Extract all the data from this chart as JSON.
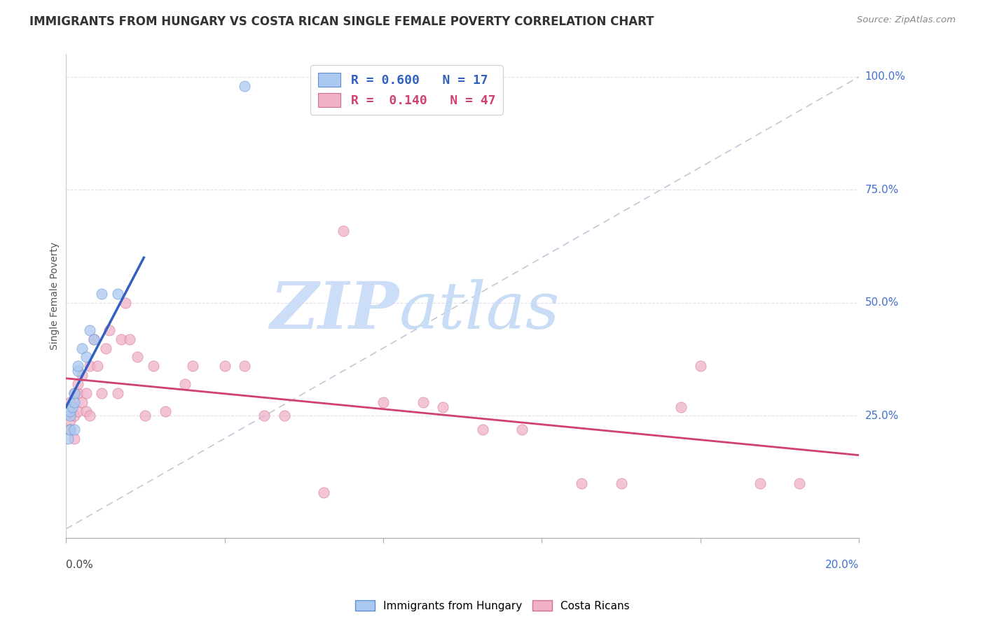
{
  "title": "IMMIGRANTS FROM HUNGARY VS COSTA RICAN SINGLE FEMALE POVERTY CORRELATION CHART",
  "source": "Source: ZipAtlas.com",
  "ylabel": "Single Female Poverty",
  "legend_blue_label": "Immigrants from Hungary",
  "legend_pink_label": "Costa Ricans",
  "blue_scatter_color": "#aac8f0",
  "pink_scatter_color": "#f0b0c8",
  "blue_line_color": "#3060c0",
  "pink_line_color": "#d04070",
  "blue_edge_color": "#6090d0",
  "pink_edge_color": "#d07090",
  "watermark_zip_color": "#ccddf8",
  "watermark_atlas_color": "#c8ddf5",
  "grid_color": "#e0e0ee",
  "diag_color": "#c0c8d8",
  "xlim": [
    0.0,
    0.2
  ],
  "ylim": [
    -0.02,
    1.05
  ],
  "hungary_x": [
    0.0005,
    0.001,
    0.001,
    0.001,
    0.0015,
    0.002,
    0.002,
    0.002,
    0.003,
    0.003,
    0.004,
    0.005,
    0.006,
    0.007,
    0.009,
    0.013,
    0.045
  ],
  "hungary_y": [
    0.2,
    0.22,
    0.25,
    0.26,
    0.27,
    0.22,
    0.28,
    0.3,
    0.35,
    0.36,
    0.4,
    0.38,
    0.44,
    0.42,
    0.52,
    0.52,
    0.98
  ],
  "costa_x": [
    0.001,
    0.001,
    0.001,
    0.002,
    0.002,
    0.002,
    0.003,
    0.003,
    0.003,
    0.004,
    0.004,
    0.005,
    0.005,
    0.006,
    0.006,
    0.007,
    0.008,
    0.009,
    0.01,
    0.011,
    0.013,
    0.014,
    0.015,
    0.016,
    0.018,
    0.02,
    0.022,
    0.025,
    0.03,
    0.032,
    0.04,
    0.045,
    0.05,
    0.055,
    0.065,
    0.07,
    0.08,
    0.09,
    0.095,
    0.105,
    0.115,
    0.13,
    0.14,
    0.155,
    0.16,
    0.175,
    0.185
  ],
  "costa_y": [
    0.24,
    0.22,
    0.28,
    0.25,
    0.3,
    0.2,
    0.26,
    0.3,
    0.32,
    0.28,
    0.34,
    0.26,
    0.3,
    0.25,
    0.36,
    0.42,
    0.36,
    0.3,
    0.4,
    0.44,
    0.3,
    0.42,
    0.5,
    0.42,
    0.38,
    0.25,
    0.36,
    0.26,
    0.32,
    0.36,
    0.36,
    0.36,
    0.25,
    0.25,
    0.08,
    0.66,
    0.28,
    0.28,
    0.27,
    0.22,
    0.22,
    0.1,
    0.1,
    0.27,
    0.36,
    0.1,
    0.1
  ],
  "figsize": [
    14.06,
    8.92
  ],
  "dpi": 100
}
